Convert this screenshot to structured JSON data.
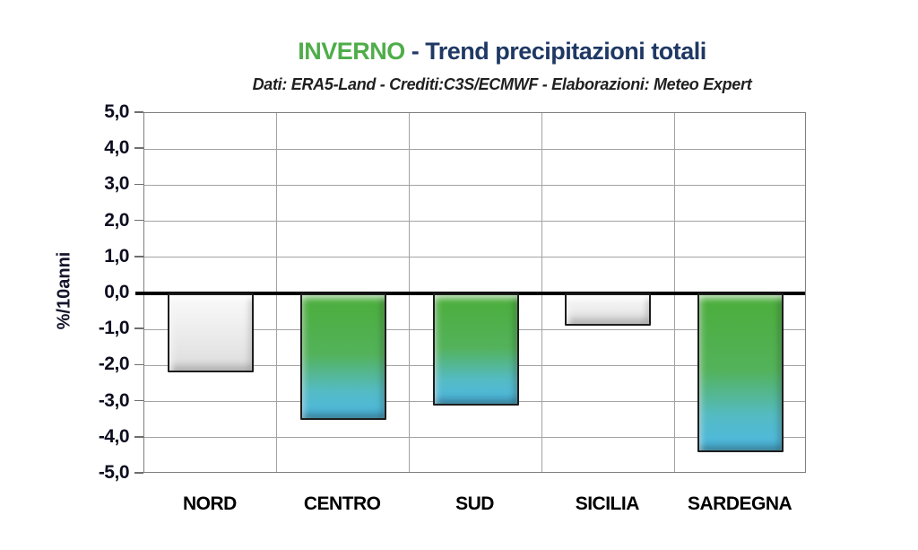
{
  "chart_data": {
    "type": "bar",
    "title": {
      "highlight": "INVERNO",
      "rest": " - Trend precipitazioni totali"
    },
    "subtitle": "Dati: ERA5-Land - Crediti:C3S/ECMWF - Elaborazioni: Meteo Expert",
    "ylabel": "%/10anni",
    "xlabel": "",
    "categories": [
      "NORD",
      "CENTRO",
      "SUD",
      "SICILIA",
      "SARDEGNA"
    ],
    "values": [
      -2.2,
      -3.5,
      -3.1,
      -0.9,
      -4.4
    ],
    "bar_styles": [
      "grey",
      "gradient",
      "gradient",
      "grey",
      "gradient"
    ],
    "ylim": [
      -5,
      5
    ],
    "ytick_step": 1,
    "ytick_labels": [
      "5,0",
      "4,0",
      "3,0",
      "2,0",
      "1,0",
      "0,0",
      "-1,0",
      "-2,0",
      "-3,0",
      "-4,0",
      "-5,0"
    ],
    "grid": true,
    "legend_position": "none",
    "colors": {
      "title_highlight": "#4FAD4A",
      "title_main": "#1F3864",
      "subtitle_text": "#1F1F1F",
      "axis_text": "#0D0D1F",
      "grid": "#A3A3A3",
      "plot_border": "#7F7F7F",
      "zero_line": "#000000",
      "bar_gradient_top": "#4CAE3E",
      "bar_gradient_bottom": "#4FB9DC",
      "bar_grey_fill": "#ECECEC",
      "bar_border": "#1D1D1D"
    }
  }
}
